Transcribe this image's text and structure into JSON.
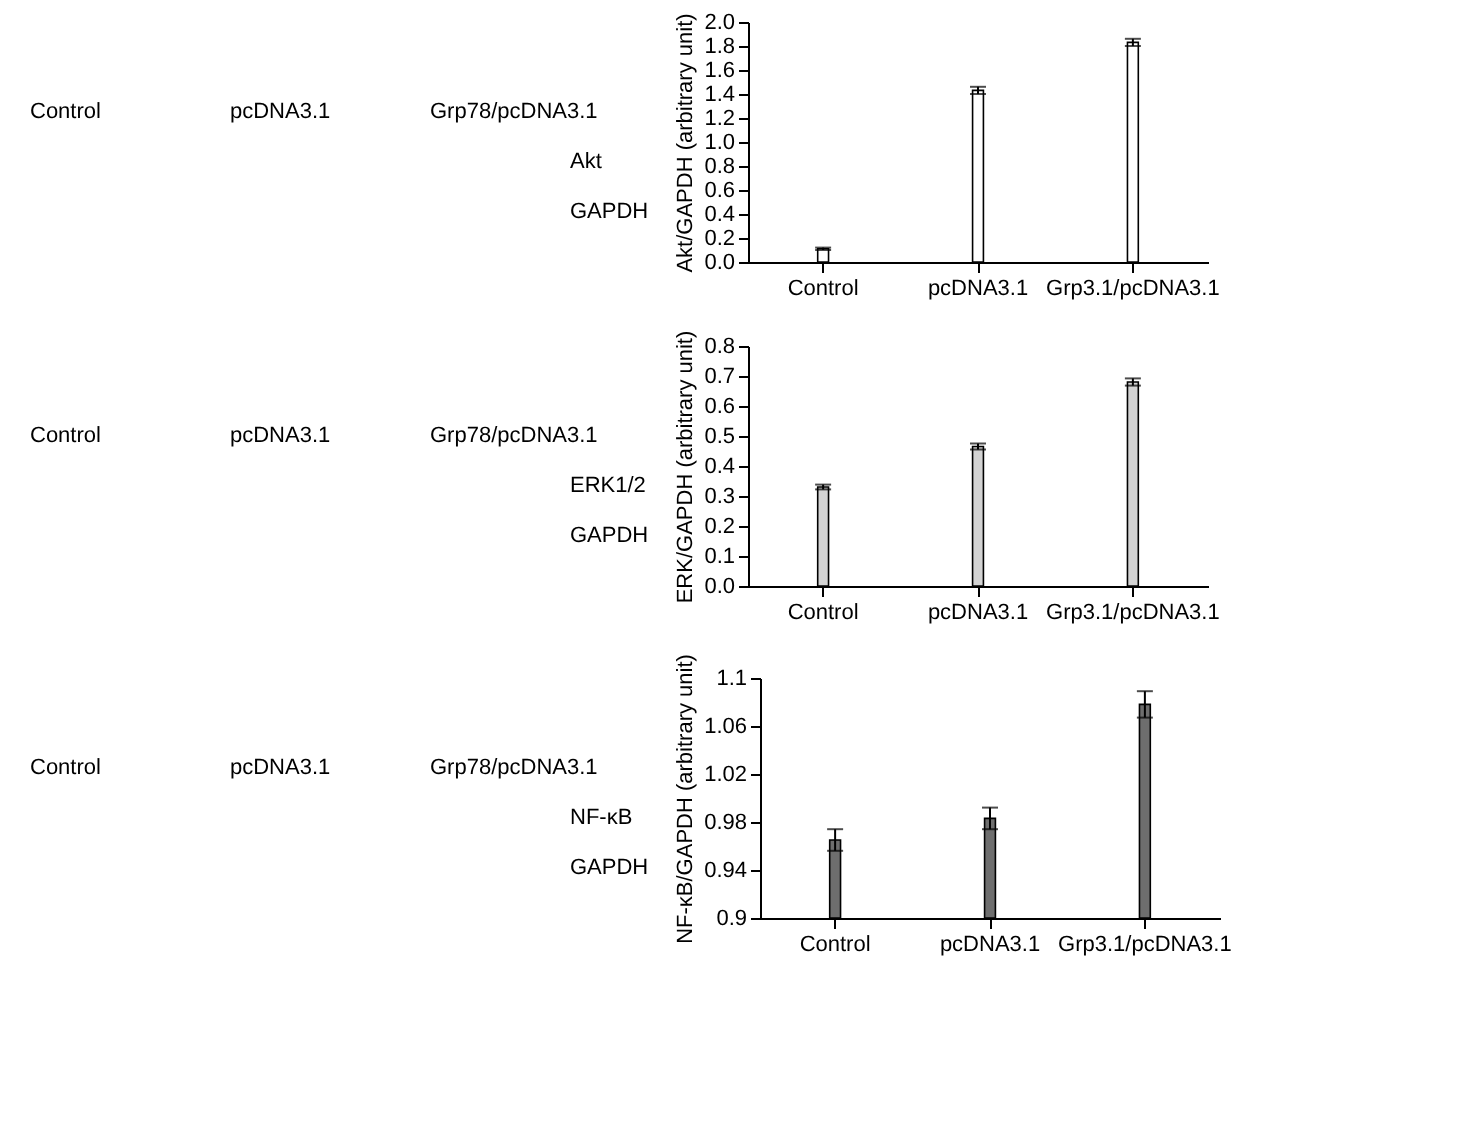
{
  "chart_data": [
    {
      "type": "other",
      "annotations": [
        "Control",
        "pcDNA3.1",
        "Grp78/pcDNA3.1",
        "Akt",
        "GAPDH"
      ]
    },
    {
      "type": "bar",
      "ylabel": "Akt/GAPDH (arbitrary unit)",
      "categories": [
        "Control",
        "pcDNA3.1",
        "Grp3.1/pcDNA3.1"
      ],
      "values": [
        0.11,
        1.43,
        1.83
      ],
      "errors": [
        0.01,
        0.03,
        0.03
      ],
      "color": "#ffffff",
      "ylim": [
        0,
        2.0
      ],
      "yticks": [
        {
          "value": 0,
          "label": "0.0"
        },
        0.2,
        0.4,
        0.6,
        0.8,
        {
          "value": 1,
          "label": "1.0"
        },
        1.2,
        1.4,
        1.6,
        1.8,
        {
          "value": 2,
          "label": "2.0"
        }
      ],
      "grid": false
    },
    {
      "type": "other",
      "annotations": [
        "Control",
        "pcDNA3.1",
        "Grp78/pcDNA3.1",
        "ERK1/2",
        "GAPDH"
      ]
    },
    {
      "type": "bar",
      "ylabel": "ERK/GAPDH (arbitrary unit)",
      "categories": [
        "Control",
        "pcDNA3.1",
        "Grp3.1/pcDNA3.1"
      ],
      "values": [
        0.33,
        0.465,
        0.68
      ],
      "errors": [
        0.008,
        0.01,
        0.012
      ],
      "color": "#d3d3d3",
      "ylim": [
        0,
        0.8
      ],
      "yticks": [
        {
          "value": 0,
          "label": "0.0"
        },
        0.1,
        0.2,
        0.3,
        0.4,
        0.5,
        0.6,
        0.7,
        0.8
      ],
      "grid": false
    },
    {
      "type": "other",
      "annotations": [
        "Control",
        "pcDNA3.1",
        "Grp78/pcDNA3.1",
        "NF-κB",
        "GAPDH"
      ]
    },
    {
      "type": "bar",
      "ylabel": "NF-κB/GAPDH (arbitrary unit)",
      "categories": [
        "Control",
        "pcDNA3.1",
        "Grp3.1/pcDNA3.1"
      ],
      "values": [
        0.965,
        0.983,
        1.078
      ],
      "errors": [
        0.009,
        0.009,
        0.011
      ],
      "color": "#6e6e6e",
      "ylim": [
        0.9,
        1.1
      ],
      "yticks": [
        0.9,
        0.94,
        0.98,
        1.02,
        1.06,
        1.1
      ],
      "grid": false
    }
  ]
}
